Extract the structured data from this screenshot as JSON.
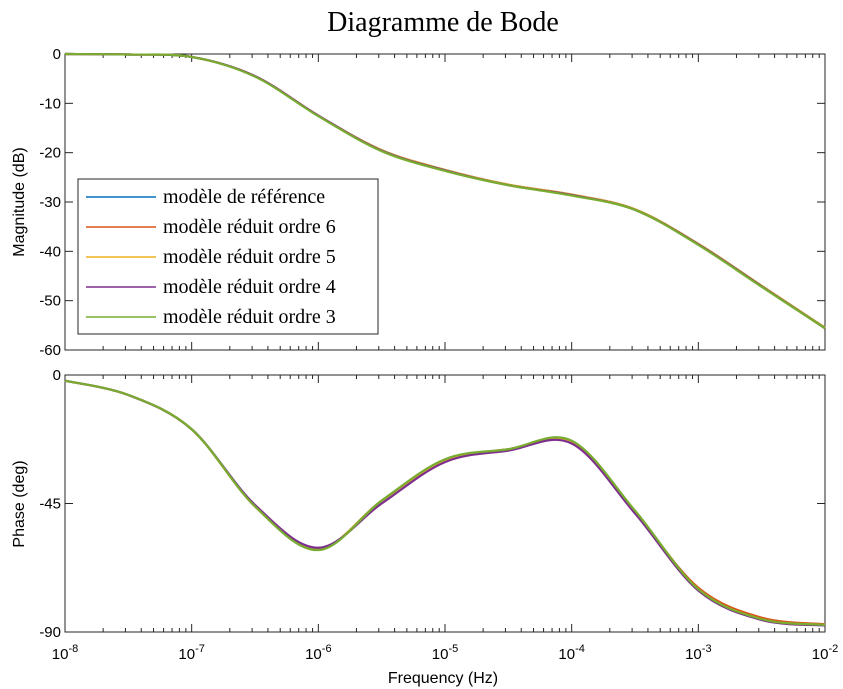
{
  "chart_data": {
    "type": "line",
    "title": "Diagramme de Bode",
    "x_scale": "log",
    "xlabel": "Frequency  (Hz)",
    "xlim": [
      "1e-8",
      "1e-2"
    ],
    "x_ticks": [
      {
        "base": "10",
        "exp": "-8"
      },
      {
        "base": "10",
        "exp": "-7"
      },
      {
        "base": "10",
        "exp": "-6"
      },
      {
        "base": "10",
        "exp": "-5"
      },
      {
        "base": "10",
        "exp": "-4"
      },
      {
        "base": "10",
        "exp": "-3"
      },
      {
        "base": "10",
        "exp": "-2"
      }
    ],
    "legend": {
      "placement": "lower-left of upper panel",
      "entries": [
        {
          "label": "modèle de référence",
          "color": "#0072BD"
        },
        {
          "label": "modèle réduit ordre 6",
          "color": "#D95319"
        },
        {
          "label": "modèle réduit ordre 5",
          "color": "#EDB120"
        },
        {
          "label": "modèle réduit ordre 4",
          "color": "#7E2F8E"
        },
        {
          "label": "modèle réduit ordre 3",
          "color": "#77AC30"
        }
      ]
    },
    "panels": [
      {
        "name": "magnitude",
        "ylabel": "Magnitude (dB)",
        "ylim": [
          -60,
          0
        ],
        "y_ticks": [
          "0",
          "-10",
          "-20",
          "-30",
          "-40",
          "-50",
          "-60"
        ],
        "x_log10": [
          -8,
          -7.5,
          -7,
          -6.5,
          -6,
          -5.5,
          -5,
          -4.5,
          -4,
          -3.5,
          -3,
          -2.5,
          -2
        ],
        "series": [
          {
            "name": "modèle de référence",
            "color": "#0072BD",
            "values": [
              0,
              -0.1,
              -0.6,
              -4.5,
              -12.5,
              -19.5,
              -23.5,
              -26.5,
              -28.5,
              -31.5,
              -38.5,
              -47,
              -55.5
            ]
          },
          {
            "name": "modèle réduit ordre 6",
            "color": "#D95319",
            "values": [
              0,
              -0.1,
              -0.6,
              -4.5,
              -12.5,
              -19.5,
              -23.5,
              -26.5,
              -28.5,
              -31.5,
              -38.5,
              -47,
              -55.5
            ]
          },
          {
            "name": "modèle réduit ordre 5",
            "color": "#EDB120",
            "values": [
              0,
              -0.1,
              -0.6,
              -4.5,
              -12.5,
              -19.5,
              -23.5,
              -26.5,
              -28.5,
              -31.5,
              -38.5,
              -47,
              -55.5
            ]
          },
          {
            "name": "modèle réduit ordre 4",
            "color": "#7E2F8E",
            "values": [
              0,
              -0.1,
              -0.6,
              -4.5,
              -12.5,
              -19.6,
              -23.6,
              -26.6,
              -28.6,
              -31.6,
              -38.6,
              -47.1,
              -55.6
            ]
          },
          {
            "name": "modèle réduit ordre 3",
            "color": "#77AC30",
            "values": [
              0,
              -0.1,
              -0.6,
              -4.6,
              -12.6,
              -19.7,
              -23.7,
              -26.6,
              -28.7,
              -31.6,
              -38.7,
              -47.2,
              -55.6
            ]
          }
        ]
      },
      {
        "name": "phase",
        "ylabel": "Phase (deg)",
        "ylim": [
          -90,
          0
        ],
        "y_ticks": [
          "0",
          "-45",
          "-90"
        ],
        "x_log10": [
          -8,
          -7.5,
          -7,
          -6.5,
          -6,
          -5.5,
          -5,
          -4.5,
          -4,
          -3.5,
          -3,
          -2.5,
          -2
        ],
        "series": [
          {
            "name": "modèle de référence",
            "color": "#0072BD",
            "values": [
              -2,
              -7,
              -19,
              -46,
              -61,
              -44,
              -30,
              -26,
              -23.5,
              -48,
              -75,
              -85.5,
              -87.5
            ]
          },
          {
            "name": "modèle réduit ordre 6",
            "color": "#D95319",
            "values": [
              -2,
              -7,
              -19,
              -46,
              -61,
              -44,
              -30,
              -26,
              -23.5,
              -48,
              -74.5,
              -85,
              -87.3
            ]
          },
          {
            "name": "modèle réduit ordre 5",
            "color": "#EDB120",
            "values": [
              -2,
              -7,
              -19,
              -46,
              -61,
              -44,
              -30,
              -26,
              -23.5,
              -48,
              -75,
              -85.5,
              -87.5
            ]
          },
          {
            "name": "modèle réduit ordre 4",
            "color": "#7E2F8E",
            "values": [
              -2,
              -7,
              -19,
              -45.5,
              -60.5,
              -45,
              -30.5,
              -26.5,
              -24,
              -48.5,
              -75.5,
              -85.8,
              -87.7
            ]
          },
          {
            "name": "modèle réduit ordre 3",
            "color": "#77AC30",
            "values": [
              -2,
              -7,
              -19,
              -46,
              -61.3,
              -44,
              -29.5,
              -26,
              -23,
              -47.5,
              -75,
              -85.5,
              -87.5
            ]
          }
        ]
      }
    ]
  }
}
